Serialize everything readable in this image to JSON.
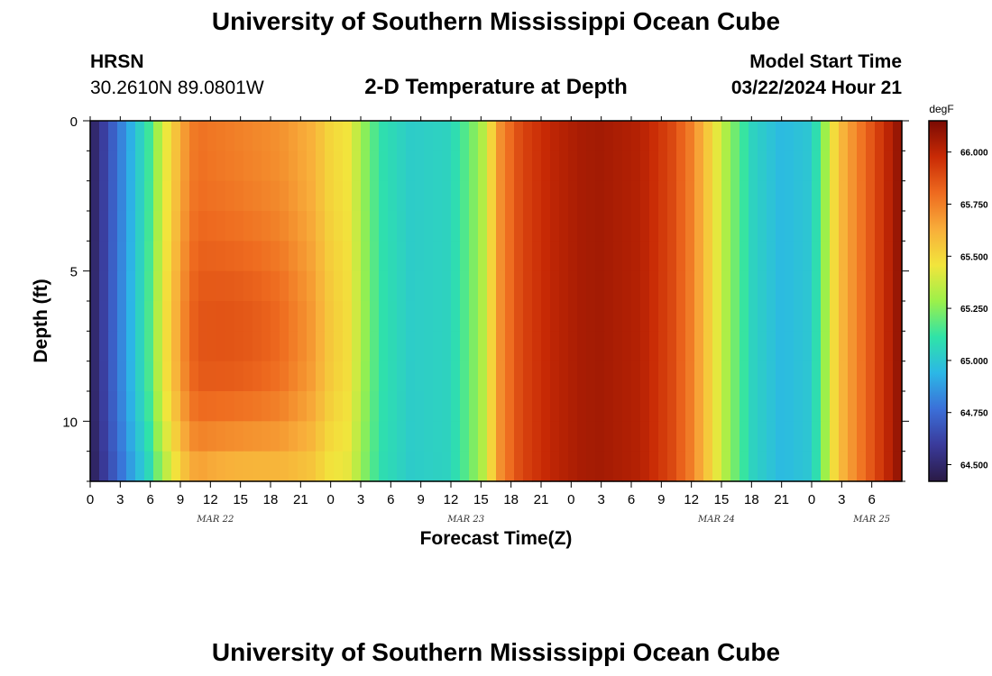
{
  "page": {
    "title_top": "University of Southern Mississippi Ocean Cube",
    "title_bottom": "University of Southern Mississippi Ocean Cube",
    "station": "HRSN",
    "coords": "30.2610N  89.0801W",
    "plot_title": "2-D Temperature at Depth",
    "model_label": "Model Start Time",
    "model_time": "03/22/2024 Hour 21"
  },
  "colors": {
    "background": "#ffffff",
    "colormap": [
      "#2a1a45",
      "#3a3a9a",
      "#3b6fd8",
      "#2cb7e6",
      "#2fe3a8",
      "#9cf04a",
      "#f2e53c",
      "#f8ad3a",
      "#ee6a1f",
      "#c92a05",
      "#7a0a03"
    ]
  },
  "chart_data": {
    "type": "heatmap",
    "xlabel": "Forecast Time(Z)",
    "ylabel": "Depth (ft)",
    "units": "degF",
    "x_hours_from_mar22_00": [
      0,
      81
    ],
    "x_tick_labels": [
      "0",
      "3",
      "6",
      "9",
      "12",
      "15",
      "18",
      "21",
      "0",
      "3",
      "6",
      "9",
      "12",
      "15",
      "18",
      "21",
      "0",
      "3",
      "6",
      "9",
      "12",
      "15",
      "18",
      "21",
      "0",
      "3",
      "6"
    ],
    "day_labels": [
      {
        "text": "MAR 22",
        "hour": 12.5
      },
      {
        "text": "MAR 23",
        "hour": 37.5
      },
      {
        "text": "MAR 24",
        "hour": 62.5
      },
      {
        "text": "MAR 25",
        "hour": 78
      }
    ],
    "y_range_ft": [
      0,
      12
    ],
    "y_ticks": [
      0,
      5,
      10
    ],
    "colorbar_range": [
      64.42,
      66.15
    ],
    "colorbar_ticks": [
      "64.500",
      "64.750",
      "65.000",
      "65.250",
      "65.500",
      "65.750",
      "66.000"
    ],
    "surface_profile": [
      {
        "hour": 0,
        "temp": 64.45
      },
      {
        "hour": 3,
        "temp": 64.8
      },
      {
        "hour": 6,
        "temp": 65.15
      },
      {
        "hour": 7,
        "temp": 65.35
      },
      {
        "hour": 8,
        "temp": 65.5
      },
      {
        "hour": 9,
        "temp": 65.62
      },
      {
        "hour": 10,
        "temp": 65.75
      },
      {
        "hour": 11,
        "temp": 65.78
      },
      {
        "hour": 14,
        "temp": 65.75
      },
      {
        "hour": 19,
        "temp": 65.7
      },
      {
        "hour": 22,
        "temp": 65.62
      },
      {
        "hour": 24,
        "temp": 65.5
      },
      {
        "hour": 26,
        "temp": 65.45
      },
      {
        "hour": 27,
        "temp": 65.3
      },
      {
        "hour": 29,
        "temp": 65.1
      },
      {
        "hour": 32,
        "temp": 65.02
      },
      {
        "hour": 36,
        "temp": 65.05
      },
      {
        "hour": 39,
        "temp": 65.3
      },
      {
        "hour": 40,
        "temp": 65.5
      },
      {
        "hour": 41,
        "temp": 65.72
      },
      {
        "hour": 43,
        "temp": 65.9
      },
      {
        "hour": 46,
        "temp": 66.0
      },
      {
        "hour": 49,
        "temp": 66.05
      },
      {
        "hour": 51,
        "temp": 66.06
      },
      {
        "hour": 55,
        "temp": 66.02
      },
      {
        "hour": 58,
        "temp": 65.9
      },
      {
        "hour": 60,
        "temp": 65.75
      },
      {
        "hour": 62,
        "temp": 65.5
      },
      {
        "hour": 64,
        "temp": 65.25
      },
      {
        "hour": 66,
        "temp": 65.05
      },
      {
        "hour": 69,
        "temp": 64.95
      },
      {
        "hour": 72,
        "temp": 65.0
      },
      {
        "hour": 73,
        "temp": 65.2
      },
      {
        "hour": 74,
        "temp": 65.45
      },
      {
        "hour": 75,
        "temp": 65.6
      },
      {
        "hour": 77,
        "temp": 65.78
      },
      {
        "hour": 79,
        "temp": 65.95
      },
      {
        "hour": 81,
        "temp": 66.12
      }
    ],
    "depth_anomaly": {
      "hour_center": 16,
      "hour_width": 8,
      "depth_center_ft": 7,
      "depth_width_ft": 3.5,
      "amplitude_degF": 0.12
    },
    "bottom_cooling": {
      "hour_center": 14,
      "hour_width": 9,
      "amplitude_degF": -0.2
    }
  }
}
